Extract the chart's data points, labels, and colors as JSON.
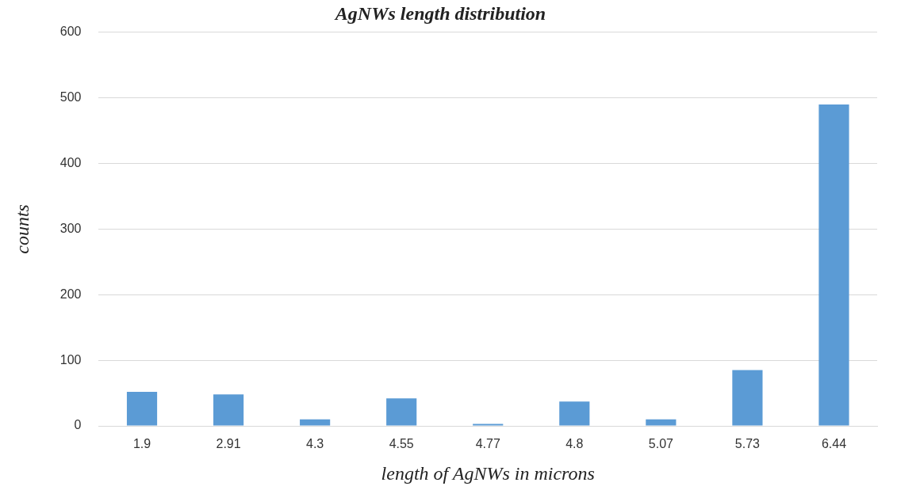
{
  "chart_data": {
    "type": "bar",
    "title": "AgNWs length distribution",
    "xlabel": "length of AgNWs in microns",
    "ylabel": "counts",
    "categories": [
      "1.9",
      "2.91",
      "4.3",
      "4.55",
      "4.77",
      "4.8",
      "5.07",
      "5.73",
      "6.44"
    ],
    "values": [
      52,
      48,
      10,
      42,
      3,
      37,
      10,
      85,
      490
    ],
    "color": "#5b9bd5",
    "ylim": [
      0,
      600
    ],
    "yticks": [
      0,
      100,
      200,
      300,
      400,
      500,
      600
    ],
    "grid": "y",
    "legend": false
  }
}
